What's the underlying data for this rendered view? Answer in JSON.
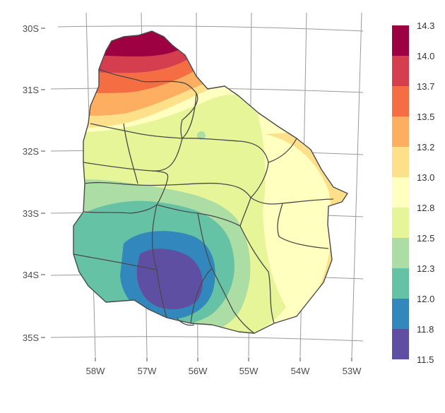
{
  "map": {
    "y_axis_labels": [
      "30S",
      "31S",
      "32S",
      "33S",
      "34S",
      "35S"
    ],
    "x_axis_labels": [
      "58W",
      "57W",
      "56W",
      "55W",
      "54W",
      "53W"
    ]
  },
  "legend": {
    "labels": [
      "14.3",
      "14.0",
      "13.7",
      "13.5",
      "13.2",
      "13.0",
      "12.8",
      "12.5",
      "12.3",
      "12.0",
      "11.8",
      "11.5"
    ],
    "colors": [
      "#9e0142",
      "#d53e4f",
      "#f46d43",
      "#fdae61",
      "#fee08b",
      "#ffffbf",
      "#e6f598",
      "#abdda4",
      "#66c2a5",
      "#3288bd",
      "#5e4fa2"
    ]
  }
}
